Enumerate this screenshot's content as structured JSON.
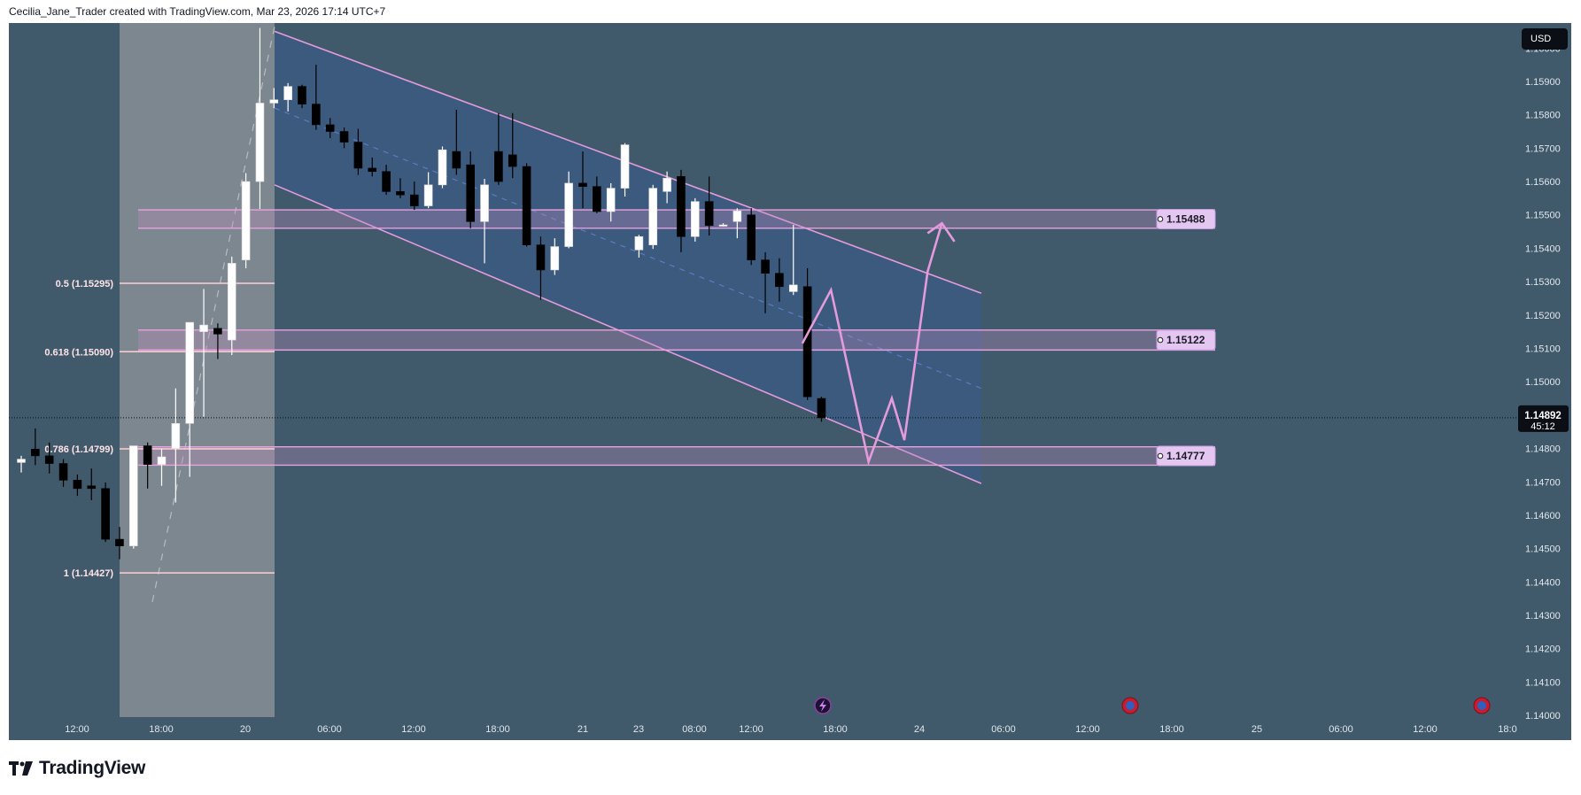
{
  "header": {
    "attribution": "Cecilia_Jane_Trader created with TradingView.com, Mar 23, 2026 17:14 UTC+7"
  },
  "brand": {
    "name": "TradingView"
  },
  "currency": "USD",
  "colors": {
    "background": "#405a6b",
    "channel_line": "#e49bdc",
    "channel_fill": "#3b5a80",
    "zone_line": "#e8a2df",
    "fib_line": "#ffd0d4",
    "fib_band": "#8b9198",
    "up_candle": "#ffffff",
    "down_candle": "#000000",
    "projection": "#e49bdc"
  },
  "chart_data": {
    "type": "candlestick",
    "x_ticks": [
      "12:00",
      "18:00",
      "20",
      "06:00",
      "12:00",
      "18:00",
      "21",
      "23",
      "08:00",
      "12:00",
      "18:00",
      "24",
      "06:00",
      "12:00",
      "18:00",
      "25",
      "06:00",
      "12:00",
      "18:0"
    ],
    "y_ticks": [
      "1.16000",
      "1.15900",
      "1.15800",
      "1.15700",
      "1.15600",
      "1.15500",
      "1.15400",
      "1.15300",
      "1.15200",
      "1.15100",
      "1.15000",
      "1.14900",
      "1.14800",
      "1.14700",
      "1.14600",
      "1.14500",
      "1.14400",
      "1.14300",
      "1.14200",
      "1.14100",
      "1.14000"
    ],
    "ylim": [
      1.13995,
      1.16075
    ],
    "current_price": {
      "price": "1.14892",
      "countdown": "45:12",
      "value": 1.14892
    },
    "zones": [
      {
        "label": "1.15488",
        "top": 1.15515,
        "bottom": 1.1546
      },
      {
        "label": "1.15122",
        "top": 1.15155,
        "bottom": 1.15095
      },
      {
        "label": "1.14777",
        "top": 1.14805,
        "bottom": 1.1475
      }
    ],
    "fib_levels": [
      {
        "label": "0.5 (1.15295)",
        "value": 1.15295
      },
      {
        "label": "0.618 (1.15090)",
        "value": 1.1509
      },
      {
        "label": "0.786 (1.14799)",
        "value": 1.14799
      },
      {
        "label": "1 (1.14427)",
        "value": 1.14427
      }
    ],
    "channel": {
      "upper": [
        [
          0,
          1.1605
        ],
        [
          39.5,
          1.15265
        ]
      ],
      "lower": [
        [
          0,
          1.1559
        ],
        [
          39.5,
          1.14695
        ]
      ]
    },
    "projection_path": [
      [
        29.5,
        1.15115
      ],
      [
        31.1,
        1.15275
      ],
      [
        33.2,
        1.1476
      ],
      [
        34.5,
        1.1495
      ],
      [
        35.2,
        1.14825
      ],
      [
        36.5,
        1.1533
      ],
      [
        37.3,
        1.15475
      ]
    ],
    "projection_arrowhead": {
      "left": [
        36.5,
        1.15445
      ],
      "tip": [
        37.3,
        1.15475
      ],
      "right": [
        38.0,
        1.1542
      ]
    },
    "candles": [
      {
        "o": 1.14758,
        "h": 1.14778,
        "l": 1.14728,
        "c": 1.14768
      },
      {
        "o": 1.14798,
        "h": 1.1486,
        "l": 1.1475,
        "c": 1.14778
      },
      {
        "o": 1.14778,
        "h": 1.14818,
        "l": 1.14725,
        "c": 1.14755
      },
      {
        "o": 1.14755,
        "h": 1.14768,
        "l": 1.14685,
        "c": 1.14705
      },
      {
        "o": 1.14705,
        "h": 1.14722,
        "l": 1.14658,
        "c": 1.1468
      },
      {
        "o": 1.14688,
        "h": 1.1474,
        "l": 1.14645,
        "c": 1.1468
      },
      {
        "o": 1.1468,
        "h": 1.14698,
        "l": 1.1452,
        "c": 1.14528
      },
      {
        "o": 1.14528,
        "h": 1.14565,
        "l": 1.14468,
        "c": 1.14508
      },
      {
        "o": 1.14508,
        "h": 1.14808,
        "l": 1.145,
        "c": 1.14808
      },
      {
        "o": 1.14808,
        "h": 1.14818,
        "l": 1.1468,
        "c": 1.14752
      },
      {
        "o": 1.14752,
        "h": 1.148,
        "l": 1.14688,
        "c": 1.14775
      },
      {
        "o": 1.148,
        "h": 1.1498,
        "l": 1.14638,
        "c": 1.14875
      },
      {
        "o": 1.14875,
        "h": 1.15178,
        "l": 1.14715,
        "c": 1.15178
      },
      {
        "o": 1.1515,
        "h": 1.15278,
        "l": 1.14895,
        "c": 1.1517
      },
      {
        "o": 1.1516,
        "h": 1.15175,
        "l": 1.15068,
        "c": 1.15143
      },
      {
        "o": 1.15125,
        "h": 1.15375,
        "l": 1.1508,
        "c": 1.15355
      },
      {
        "o": 1.15365,
        "h": 1.15625,
        "l": 1.1534,
        "c": 1.156
      },
      {
        "o": 1.156,
        "h": 1.1606,
        "l": 1.15518,
        "c": 1.15835
      },
      {
        "o": 1.15835,
        "h": 1.1588,
        "l": 1.1582,
        "c": 1.15845
      },
      {
        "o": 1.15845,
        "h": 1.15895,
        "l": 1.1581,
        "c": 1.15885
      },
      {
        "o": 1.15885,
        "h": 1.1589,
        "l": 1.1582,
        "c": 1.15832
      },
      {
        "o": 1.15832,
        "h": 1.1595,
        "l": 1.15755,
        "c": 1.1577
      },
      {
        "o": 1.1577,
        "h": 1.1579,
        "l": 1.1573,
        "c": 1.1575
      },
      {
        "o": 1.1575,
        "h": 1.15762,
        "l": 1.157,
        "c": 1.15718
      },
      {
        "o": 1.15718,
        "h": 1.15758,
        "l": 1.1562,
        "c": 1.1564
      },
      {
        "o": 1.1564,
        "h": 1.15672,
        "l": 1.15615,
        "c": 1.1563
      },
      {
        "o": 1.1563,
        "h": 1.1565,
        "l": 1.1556,
        "c": 1.1557
      },
      {
        "o": 1.1557,
        "h": 1.1561,
        "l": 1.1555,
        "c": 1.1556
      },
      {
        "o": 1.1556,
        "h": 1.156,
        "l": 1.15515,
        "c": 1.15527
      },
      {
        "o": 1.15527,
        "h": 1.15628,
        "l": 1.1552,
        "c": 1.1559
      },
      {
        "o": 1.1559,
        "h": 1.15705,
        "l": 1.1558,
        "c": 1.15695
      },
      {
        "o": 1.1569,
        "h": 1.15815,
        "l": 1.1562,
        "c": 1.1564
      },
      {
        "o": 1.1565,
        "h": 1.1569,
        "l": 1.1546,
        "c": 1.1548
      },
      {
        "o": 1.1548,
        "h": 1.15608,
        "l": 1.15355,
        "c": 1.1559
      },
      {
        "o": 1.1569,
        "h": 1.15805,
        "l": 1.1559,
        "c": 1.156
      },
      {
        "o": 1.1568,
        "h": 1.15805,
        "l": 1.1561,
        "c": 1.15645
      },
      {
        "o": 1.15645,
        "h": 1.15655,
        "l": 1.15405,
        "c": 1.1541
      },
      {
        "o": 1.1541,
        "h": 1.15435,
        "l": 1.15245,
        "c": 1.15335
      },
      {
        "o": 1.15335,
        "h": 1.1543,
        "l": 1.1532,
        "c": 1.15405
      },
      {
        "o": 1.15405,
        "h": 1.1563,
        "l": 1.154,
        "c": 1.15595
      },
      {
        "o": 1.15595,
        "h": 1.1569,
        "l": 1.1552,
        "c": 1.15585
      },
      {
        "o": 1.15585,
        "h": 1.15615,
        "l": 1.15505,
        "c": 1.1551
      },
      {
        "o": 1.1551,
        "h": 1.15595,
        "l": 1.1548,
        "c": 1.1558
      },
      {
        "o": 1.1558,
        "h": 1.15715,
        "l": 1.15555,
        "c": 1.1571
      },
      {
        "o": 1.15395,
        "h": 1.1544,
        "l": 1.15372,
        "c": 1.15435
      },
      {
        "o": 1.1541,
        "h": 1.1559,
        "l": 1.15398,
        "c": 1.1558
      },
      {
        "o": 1.1557,
        "h": 1.1563,
        "l": 1.15535,
        "c": 1.1561
      },
      {
        "o": 1.15615,
        "h": 1.15635,
        "l": 1.15388,
        "c": 1.15435
      },
      {
        "o": 1.15435,
        "h": 1.1555,
        "l": 1.1542,
        "c": 1.1554
      },
      {
        "o": 1.1554,
        "h": 1.15615,
        "l": 1.15438,
        "c": 1.15468
      },
      {
        "o": 1.1547,
        "h": 1.15475,
        "l": 1.15465,
        "c": 1.1547
      },
      {
        "o": 1.1548,
        "h": 1.1552,
        "l": 1.1543,
        "c": 1.15512
      },
      {
        "o": 1.155,
        "h": 1.1552,
        "l": 1.1535,
        "c": 1.15365
      },
      {
        "o": 1.15365,
        "h": 1.15388,
        "l": 1.15205,
        "c": 1.15325
      },
      {
        "o": 1.15325,
        "h": 1.1537,
        "l": 1.1524,
        "c": 1.15285
      },
      {
        "o": 1.1527,
        "h": 1.1547,
        "l": 1.1526,
        "c": 1.1529
      },
      {
        "o": 1.15285,
        "h": 1.1534,
        "l": 1.14945,
        "c": 1.14955
      },
      {
        "o": 1.1495,
        "h": 1.14955,
        "l": 1.1488,
        "c": 1.14892
      }
    ]
  }
}
